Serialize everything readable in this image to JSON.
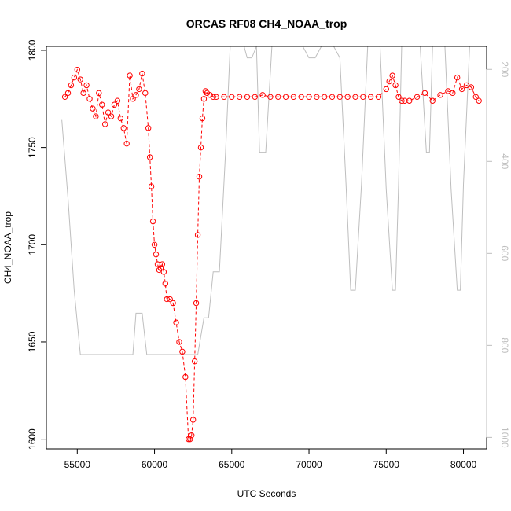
{
  "chart_data": {
    "type": "scatter",
    "title": "ORCAS RF08 CH4_NOAA_trop",
    "xlabel": "UTC Seconds",
    "ylabel": "CH4_NOAA_trop",
    "xlim": [
      53000,
      81500
    ],
    "ylim": [
      1595,
      1802
    ],
    "y2lim": [
      1025,
      150
    ],
    "y2_reversed": true,
    "x_ticks": [
      "55000",
      "60000",
      "65000",
      "70000",
      "75000",
      "80000"
    ],
    "y_ticks": [
      "1600",
      "1650",
      "1700",
      "1750",
      "1800"
    ],
    "y2_ticks": [
      "200",
      "400",
      "600",
      "800",
      "1000"
    ],
    "colors": {
      "series": "#ff0000",
      "secondary": "#bebebe",
      "axis": "#000000"
    },
    "series": [
      {
        "marker": "open-circle-with-line",
        "color": "#ff0000",
        "x": [
          54200,
          54400,
          54600,
          54800,
          55000,
          55200,
          55400,
          55600,
          55800,
          56000,
          56200,
          56400,
          56600,
          56800,
          57000,
          57200,
          57400,
          57600,
          57800,
          58000,
          58200,
          58400,
          58600,
          58800,
          59000,
          59200,
          59400,
          59600,
          59700,
          59800,
          59900,
          60000,
          60100,
          60200,
          60300,
          60400,
          60500,
          60600,
          60700,
          60800,
          61000,
          61200,
          61400,
          61600,
          61800,
          62000,
          62200,
          62300,
          62400,
          62500,
          62600,
          62700,
          62800,
          62900,
          63000,
          63100,
          63200,
          63300,
          63400,
          63600,
          63800,
          64000,
          64500,
          65000,
          65500,
          66000,
          66500,
          67000,
          67500,
          68000,
          68500,
          69000,
          69500,
          70000,
          70500,
          71000,
          71500,
          72000,
          72500,
          73000,
          73500,
          74000,
          74500,
          75000,
          75200,
          75400,
          75600,
          75800,
          76000,
          76200,
          76500,
          77000,
          77500,
          78000,
          78500,
          79000,
          79300,
          79600,
          79900,
          80200,
          80500,
          80800,
          81000
        ],
        "y": [
          1776,
          1778,
          1782,
          1786,
          1790,
          1785,
          1778,
          1782,
          1775,
          1770,
          1766,
          1778,
          1772,
          1762,
          1768,
          1766,
          1772,
          1774,
          1765,
          1760,
          1752,
          1787,
          1775,
          1777,
          1780,
          1788,
          1778,
          1760,
          1745,
          1730,
          1712,
          1700,
          1695,
          1690,
          1687,
          1688,
          1690,
          1686,
          1680,
          1672,
          1672,
          1670,
          1660,
          1650,
          1645,
          1632,
          1600,
          1600,
          1602,
          1610,
          1640,
          1670,
          1705,
          1735,
          1750,
          1765,
          1775,
          1779,
          1778,
          1777,
          1776,
          1776,
          1776,
          1776,
          1776,
          1776,
          1776,
          1777,
          1776,
          1776,
          1776,
          1776,
          1776,
          1776,
          1776,
          1776,
          1776,
          1776,
          1776,
          1776,
          1776,
          1776,
          1776,
          1780,
          1784,
          1787,
          1782,
          1776,
          1774,
          1774,
          1774,
          1776,
          1778,
          1774,
          1777,
          1779,
          1778,
          1786,
          1780,
          1782,
          1781,
          1776,
          1774
        ]
      },
      {
        "axis": "right",
        "color": "#bebebe",
        "x": [
          54000,
          54400,
          54800,
          55200,
          55500,
          56500,
          57500,
          58300,
          58600,
          58800,
          59200,
          59500,
          60000,
          61000,
          62000,
          62400,
          62600,
          62800,
          63200,
          63500,
          63800,
          64200,
          64600,
          64900,
          65000,
          65400,
          65800,
          66000,
          66300,
          66600,
          66800,
          67200,
          67600,
          68000,
          68400,
          68800,
          69200,
          69600,
          70000,
          70400,
          70800,
          71200,
          71600,
          72000,
          72400,
          72700,
          73000,
          73400,
          73800,
          74200,
          74600,
          75000,
          75400,
          75600,
          75800,
          76000,
          76400,
          76800,
          77200,
          77600,
          77800,
          78000,
          78400,
          78800,
          79200,
          79600,
          79800,
          80000,
          80400,
          80800,
          81000
        ],
        "y": [
          310,
          480,
          680,
          820,
          820,
          820,
          820,
          820,
          820,
          730,
          730,
          820,
          820,
          820,
          820,
          820,
          820,
          820,
          740,
          740,
          640,
          640,
          380,
          150,
          150,
          150,
          150,
          175,
          175,
          150,
          380,
          380,
          150,
          150,
          150,
          150,
          150,
          150,
          175,
          175,
          150,
          150,
          150,
          175,
          450,
          680,
          680,
          450,
          150,
          150,
          150,
          460,
          680,
          680,
          450,
          150,
          150,
          150,
          150,
          380,
          380,
          150,
          150,
          150,
          460,
          680,
          680,
          450,
          150,
          150,
          150
        ]
      }
    ]
  }
}
